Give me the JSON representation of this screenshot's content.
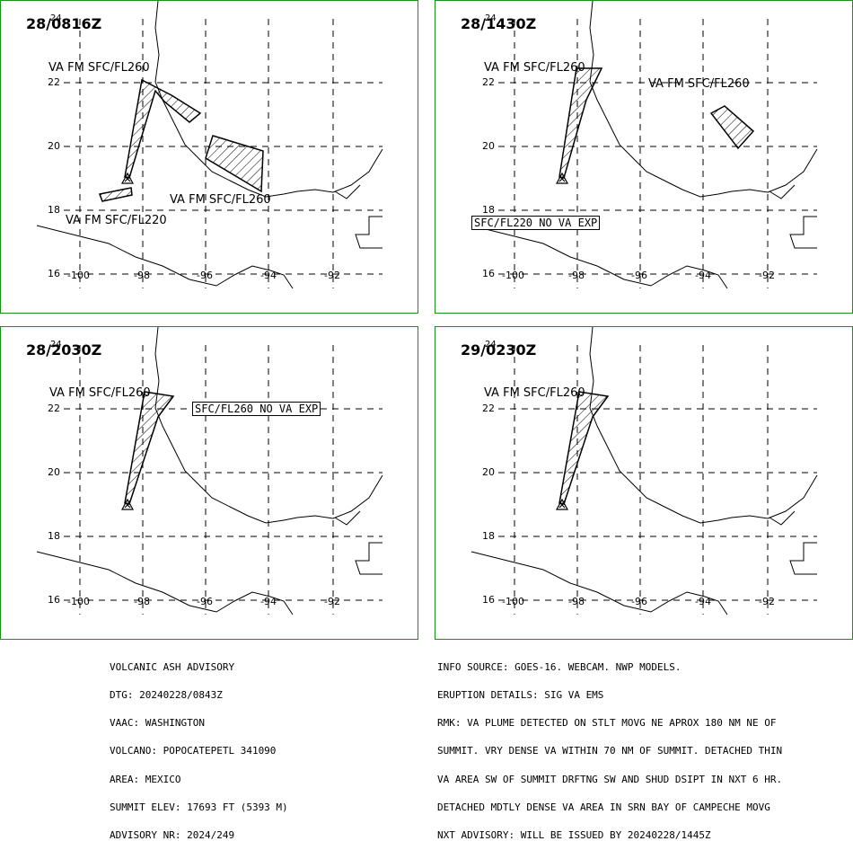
{
  "panels": [
    {
      "time": "28/0816Z",
      "labels": [
        "VA FM SFC/FL260",
        "VA FM SFC/FL260",
        "VA FM SFC/FL220"
      ],
      "boxed": ""
    },
    {
      "time": "28/1430Z",
      "labels": [
        "VA FM SFC/FL260",
        "VA FM SFC/FL260"
      ],
      "boxed": "SFC/FL220 NO VA EXP"
    },
    {
      "time": "28/2030Z",
      "labels": [
        "VA FM SFC/FL260"
      ],
      "boxed": "SFC/FL260 NO VA EXP"
    },
    {
      "time": "29/0230Z",
      "labels": [
        "VA FM SFC/FL260"
      ],
      "boxed": ""
    }
  ],
  "map": {
    "latitudes": [
      "24",
      "22",
      "20",
      "18",
      "16"
    ],
    "longitudes": [
      "-100",
      "-98",
      "-96",
      "-94",
      "-92"
    ]
  },
  "advisory": {
    "title": "VOLCANIC ASH ADVISORY",
    "dtg": "DTG: 20240228/0843Z",
    "vaac": "VAAC: WASHINGTON",
    "volcano": "VOLCANO: POPOCATEPETL 341090",
    "area": "AREA: MEXICO",
    "summit_elev": "SUMMIT ELEV: 17693 FT (5393 M)",
    "advisory_nr": "ADVISORY NR: 2024/249"
  },
  "remarks": {
    "info_source": "INFO SOURCE: GOES-16. WEBCAM. NWP MODELS.",
    "eruption": "ERUPTION DETAILS: SIG VA EMS",
    "rmk1": "RMK: VA PLUME DETECTED ON STLT MOVG NE APROX 180 NM NE OF",
    "rmk2": "SUMMIT. VRY DENSE VA WITHIN 70 NM OF SUMMIT. DETACHED THIN",
    "rmk3": "VA AREA SW OF SUMMIT DRFTNG SW AND SHUD DSIPT IN NXT 6 HR.",
    "rmk4": "DETACHED MDTLY DENSE VA AREA IN SRN BAY OF CAMPECHE MOVG",
    "nxt": "NXT ADVISORY: WILL BE ISSUED BY 20240228/1445Z"
  }
}
